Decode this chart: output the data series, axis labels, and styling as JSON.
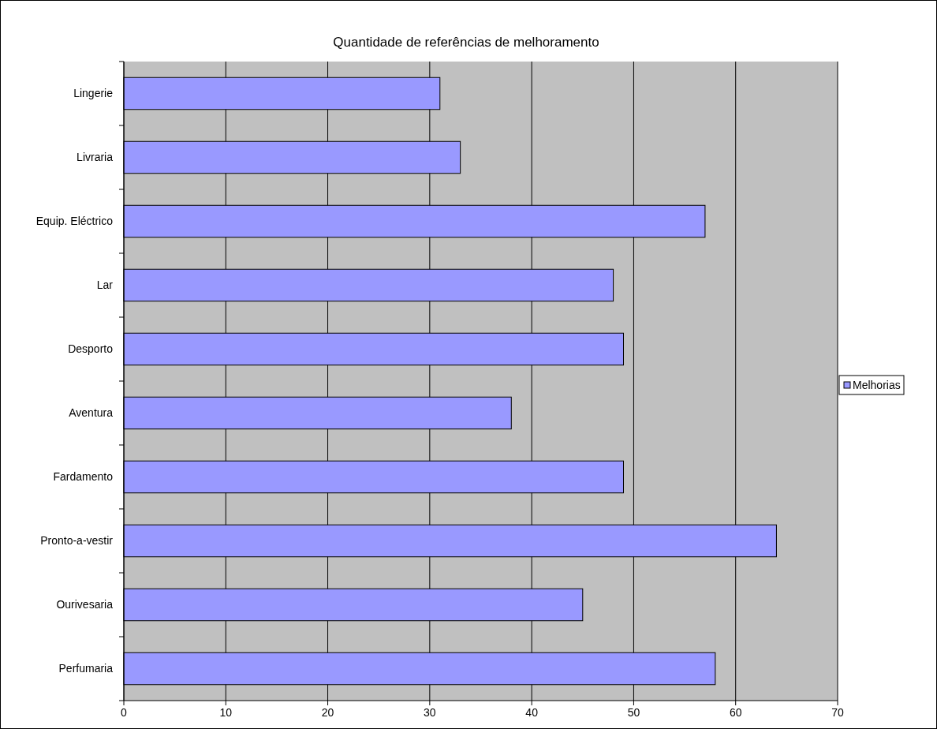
{
  "chart_data": {
    "type": "bar",
    "orientation": "horizontal",
    "title": "Quantidade de referências de melhoramento",
    "categories": [
      "Lingerie",
      "Livraria",
      "Equip. Eléctrico",
      "Lar",
      "Desporto",
      "Aventura",
      "Fardamento",
      "Pronto-a-vestir",
      "Ourivesaria",
      "Perfumaria"
    ],
    "series": [
      {
        "name": "Melhorias",
        "color": "#9999ff",
        "values": [
          31,
          33,
          57,
          48,
          49,
          38,
          49,
          64,
          45,
          58
        ]
      }
    ],
    "xlim": [
      0,
      70
    ],
    "xticks": [
      0,
      10,
      20,
      30,
      40,
      50,
      60,
      70
    ],
    "grid": "x",
    "legend": "right"
  }
}
